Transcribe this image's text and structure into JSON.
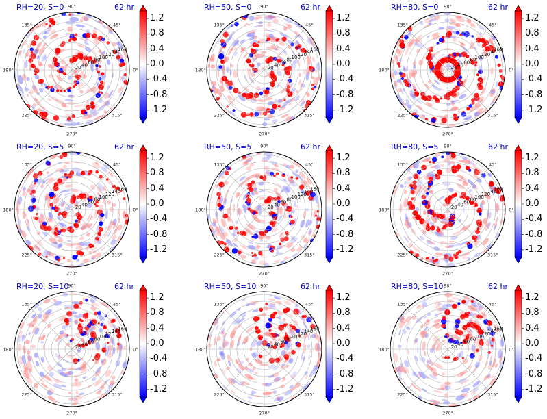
{
  "chart_data": {
    "type": "heatmap",
    "projection": "polar",
    "grid": true,
    "time_label": "62 hr",
    "angle_ticks": [
      "0°",
      "45°",
      "90°",
      "135°",
      "180°",
      "225°",
      "270°",
      "315°"
    ],
    "radius_ticks": [
      "20",
      "40",
      "60",
      "80",
      "100",
      "120",
      "140",
      "160"
    ],
    "colorbar": {
      "colormap": "bwr",
      "range": [
        -1.4,
        1.4
      ],
      "extend": "both",
      "ticks": [
        "-1.2",
        "-0.8",
        "-0.4",
        "0.0",
        "0.4",
        "0.8",
        "1.2"
      ]
    },
    "panels": [
      {
        "title": "RH=20, S=0",
        "rh": 20,
        "s": 0
      },
      {
        "title": "RH=50, S=0",
        "rh": 50,
        "s": 0
      },
      {
        "title": "RH=80, S=0",
        "rh": 80,
        "s": 0
      },
      {
        "title": "RH=20, S=5",
        "rh": 20,
        "s": 5
      },
      {
        "title": "RH=50, S=5",
        "rh": 50,
        "s": 5
      },
      {
        "title": "RH=80, S=5",
        "rh": 80,
        "s": 5
      },
      {
        "title": "RH=20, S=10",
        "rh": 20,
        "s": 10
      },
      {
        "title": "RH=50, S=10",
        "rh": 50,
        "s": 10
      },
      {
        "title": "RH=80, S=10",
        "rh": 80,
        "s": 10
      }
    ]
  },
  "colors": {
    "red": "#ff0000",
    "blue": "#0000ff",
    "title_text": "#0000cc",
    "grid": "#b0b0b0"
  }
}
